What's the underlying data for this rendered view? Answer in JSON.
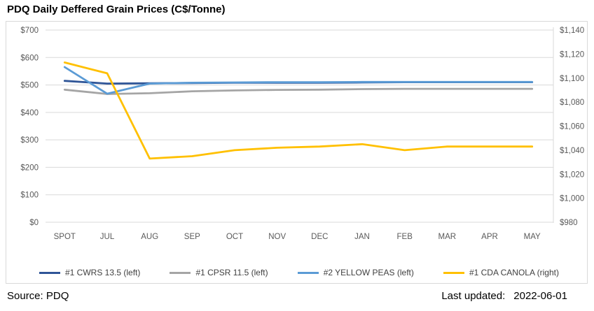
{
  "title": "PDQ Daily Deffered Grain Prices (C$/Tonne)",
  "chart_data": {
    "type": "line",
    "categories": [
      "SPOT",
      "JUL",
      "AUG",
      "SEP",
      "OCT",
      "NOV",
      "DEC",
      "JAN",
      "FEB",
      "MAR",
      "APR",
      "MAY"
    ],
    "series": [
      {
        "name": "#1 CWRS 13.5 (left)",
        "axis": "left",
        "color": "#2F5597",
        "values": [
          515,
          505,
          506,
          507,
          508,
          508,
          508,
          509,
          510,
          510,
          510,
          510
        ]
      },
      {
        "name": "#1 CPSR 11.5 (left)",
        "axis": "left",
        "color": "#A5A5A5",
        "values": [
          483,
          467,
          470,
          477,
          480,
          482,
          483,
          485,
          486,
          486,
          486,
          486
        ]
      },
      {
        "name": "#2 YELLOW PEAS (left)",
        "axis": "left",
        "color": "#5B9BD5",
        "values": [
          565,
          468,
          505,
          508,
          509,
          510,
          510,
          511,
          511,
          511,
          511,
          511
        ]
      },
      {
        "name": "#1 CDA CANOLA (right)",
        "axis": "right",
        "color": "#FFC000",
        "values": [
          1113,
          1104,
          1033,
          1035,
          1040,
          1042,
          1043,
          1045,
          1040,
          1043,
          1043,
          1043
        ]
      }
    ],
    "left_axis": {
      "min": 0,
      "max": 700,
      "step": 100,
      "tick_labels": [
        "$0",
        "$100",
        "$200",
        "$300",
        "$400",
        "$500",
        "$600",
        "$700"
      ]
    },
    "right_axis": {
      "min": 980,
      "max": 1140,
      "step": 20,
      "tick_labels": [
        "$980",
        "$1,000",
        "$1,020",
        "$1,040",
        "$1,060",
        "$1,080",
        "$1,100",
        "$1,120",
        "$1,140"
      ]
    },
    "grid": "horizontal",
    "legend_position": "bottom",
    "colors": {
      "gridline": "#D9D9D9",
      "axis_line": "#D9D9D9",
      "axis_text": "#595959",
      "legend_text": "#404040"
    }
  },
  "footer": {
    "source": "Source: PDQ",
    "last_updated_label": "Last updated:",
    "last_updated_value": "2022-06-01"
  }
}
